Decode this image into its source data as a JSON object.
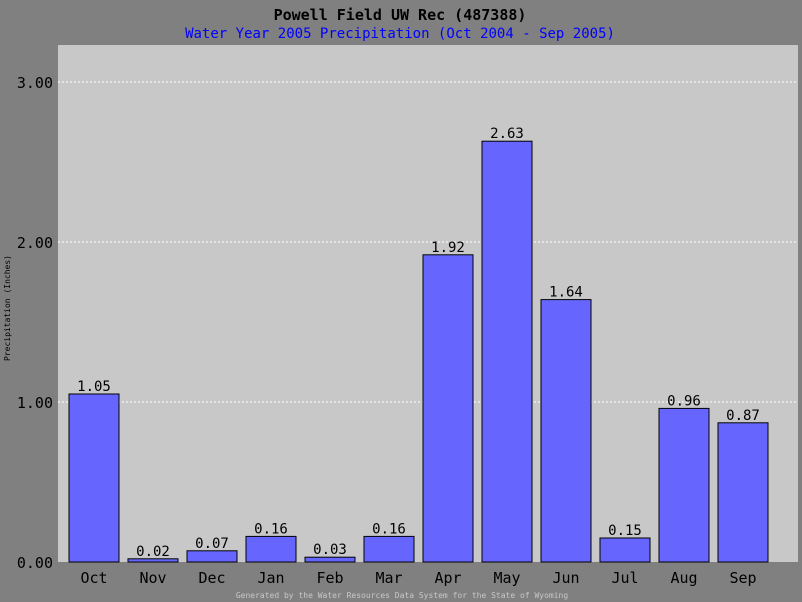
{
  "chart_data": {
    "type": "bar",
    "title": "Powell Field UW Rec (487388)",
    "subtitle": "Water Year 2005 Precipitation (Oct 2004 - Sep 2005)",
    "ylabel": "Precipitation (Inches)",
    "xlabel": "",
    "footer": "Generated by the Water Resources Data System for the State of Wyoming",
    "categories": [
      "Oct",
      "Nov",
      "Dec",
      "Jan",
      "Feb",
      "Mar",
      "Apr",
      "May",
      "Jun",
      "Jul",
      "Aug",
      "Sep"
    ],
    "values": [
      1.05,
      0.02,
      0.07,
      0.16,
      0.03,
      0.16,
      1.92,
      2.63,
      1.64,
      0.15,
      0.96,
      0.87
    ],
    "value_labels": [
      "1.05",
      "0.02",
      "0.07",
      "0.16",
      "0.03",
      "0.16",
      "1.92",
      "2.63",
      "1.64",
      "0.15",
      "0.96",
      "0.87"
    ],
    "yticks": [
      "0.00",
      "1.00",
      "2.00",
      "3.00"
    ],
    "ylim": [
      0,
      3.5
    ],
    "grid": true,
    "legend": "none",
    "colors": {
      "background": "#808080",
      "plot_area": "#c8c8c8",
      "bar_fill": "#6666ff",
      "title": "#000000",
      "subtitle": "#0000ff",
      "gridline": "#ffffff"
    }
  }
}
